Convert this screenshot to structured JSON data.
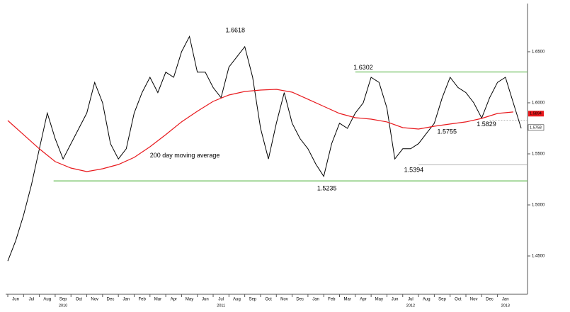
{
  "chart_data": {
    "type": "line",
    "categories": [
      "Jun",
      "Jul",
      "Aug",
      "Sep",
      "Oct",
      "Nov",
      "Dec",
      "Jan",
      "Feb",
      "Mar",
      "Apr",
      "May",
      "Jun",
      "Jul",
      "Aug",
      "Sep",
      "Oct",
      "Nov",
      "Dec",
      "Jan",
      "Feb",
      "Mar",
      "Apr",
      "May",
      "Jun",
      "Jul",
      "Aug",
      "Sep",
      "Oct",
      "Nov",
      "Dec",
      "Jan"
    ],
    "years": [
      {
        "label": "2010",
        "x": 3
      },
      {
        "label": "2011",
        "x": 13
      },
      {
        "label": "2012",
        "x": 25
      },
      {
        "label": "2013",
        "x": 31
      }
    ],
    "xlim": [
      -0.5,
      32.4
    ],
    "ylim": [
      1.4125,
      1.6972
    ],
    "yticks": [
      {
        "value": 1.65,
        "label": "1.6500"
      },
      {
        "value": 1.6,
        "label": "1.6000"
      },
      {
        "value": 1.55,
        "label": "1.5500"
      },
      {
        "value": 1.5,
        "label": "1.5000"
      },
      {
        "value": 1.45,
        "label": "1.4500"
      }
    ],
    "series": [
      {
        "color": "#000000",
        "x": [
          -0.5,
          0,
          0.5,
          1,
          1.5,
          2,
          2.5,
          3,
          3.5,
          4,
          4.5,
          5,
          5.5,
          6,
          6.5,
          7,
          7.5,
          8,
          8.5,
          9,
          9.5,
          10,
          10.5,
          11,
          11.5,
          12,
          12.5,
          13,
          13.5,
          14,
          14.5,
          15,
          15.5,
          16,
          16.5,
          17,
          17.5,
          18,
          18.5,
          19,
          19.5,
          20,
          20.5,
          21,
          21.5,
          22,
          22.5,
          23,
          23.5,
          24,
          24.5,
          25,
          25.5,
          26,
          26.5,
          27,
          27.5,
          28,
          28.5,
          29,
          29.5,
          30,
          30.5,
          31,
          31.5,
          32
        ],
        "values": [
          1.445,
          1.465,
          1.49,
          1.52,
          1.555,
          1.59,
          1.565,
          1.545,
          1.56,
          1.575,
          1.59,
          1.62,
          1.6,
          1.56,
          1.545,
          1.555,
          1.59,
          1.61,
          1.625,
          1.61,
          1.63,
          1.625,
          1.65,
          1.665,
          1.63,
          1.63,
          1.615,
          1.605,
          1.635,
          1.645,
          1.655,
          1.625,
          1.575,
          1.545,
          1.58,
          1.61,
          1.58,
          1.565,
          1.555,
          1.54,
          1.528,
          1.56,
          1.58,
          1.575,
          1.59,
          1.6,
          1.625,
          1.62,
          1.595,
          1.545,
          1.555,
          1.555,
          1.56,
          1.57,
          1.58,
          1.605,
          1.625,
          1.615,
          1.61,
          1.6,
          1.585,
          1.605,
          1.62,
          1.625,
          1.6,
          1.575
        ]
      },
      {
        "name": "200 day moving average",
        "color": "#e8191d",
        "x": [
          -0.5,
          0.5,
          1.5,
          2.5,
          3.5,
          4.5,
          5.5,
          6.5,
          7.5,
          8.5,
          9.5,
          10.5,
          11.5,
          12.5,
          13.5,
          14.5,
          15.5,
          16.5,
          17.5,
          18.5,
          19.5,
          20.5,
          21.5,
          22.5,
          23.5,
          24.5,
          25.5,
          26.5,
          27.5,
          28.5,
          29.5,
          30.5,
          31.5
        ],
        "values": [
          1.5826,
          1.5688,
          1.5549,
          1.5424,
          1.5361,
          1.5326,
          1.5354,
          1.5396,
          1.5465,
          1.5569,
          1.5688,
          1.5813,
          1.5917,
          1.6014,
          1.6076,
          1.6111,
          1.6125,
          1.6132,
          1.6104,
          1.6035,
          1.5965,
          1.5896,
          1.5854,
          1.584,
          1.5813,
          1.5757,
          1.5743,
          1.5771,
          1.5792,
          1.5813,
          1.5847,
          1.5896,
          1.591
        ]
      }
    ],
    "ma_label_position": {
      "x": 8.5,
      "value": 1.548
    },
    "annotations": [
      {
        "value": 1.6618,
        "x": 13.9
      },
      {
        "value": 1.6302,
        "x": 22
      },
      {
        "value": 1.5235,
        "x": 19.7
      },
      {
        "value": 1.5394,
        "x": 25.2
      },
      {
        "value": 1.5755,
        "x": 27.3
      },
      {
        "value": 1.5829,
        "x": 29.8
      }
    ],
    "last_values": [
      {
        "value": 1.5894,
        "color": "#e8191d"
      },
      {
        "value": 1.5758,
        "color": "#000000"
      }
    ]
  }
}
